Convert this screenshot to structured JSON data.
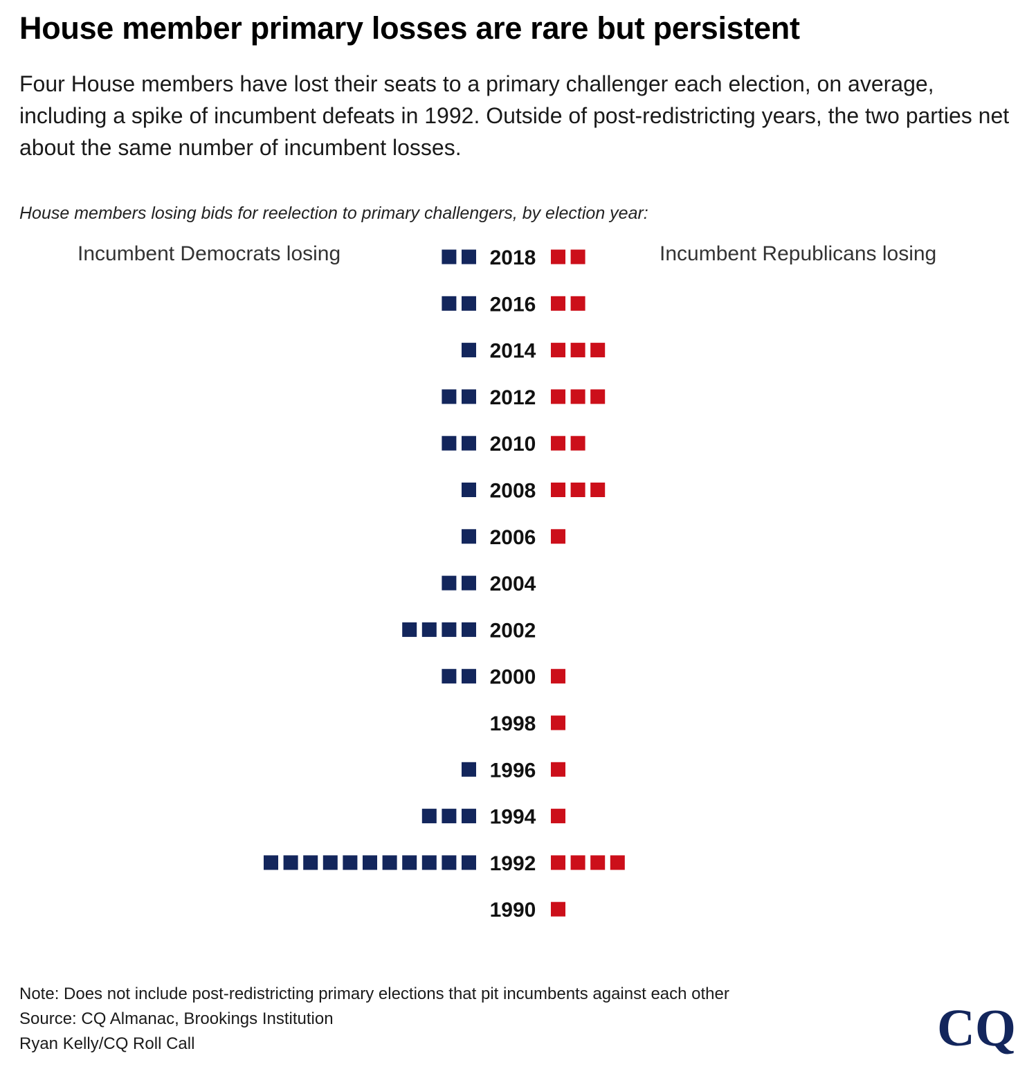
{
  "header": {
    "title": "House member primary losses are rare but persistent",
    "subtitle": "Four House members have lost their seats to a primary challenger each election, on average, including a spike of incumbent defeats in 1992. Outside of post-redistricting years, the two parties net about the same number of incumbent losses.",
    "chart_caption": "House members losing bids for reelection to primary challengers, by election year:"
  },
  "legend": {
    "left_label": "Incumbent Democrats losing",
    "right_label": "Incumbent Republicans losing"
  },
  "colors": {
    "democrat": "#13265c",
    "republican": "#cc0f1a",
    "logo": "#13265c"
  },
  "chart_data": {
    "type": "butterfly-unit",
    "title": "House members losing bids for reelection to primary challengers, by election year:",
    "series": [
      {
        "name": "Incumbent Democrats losing",
        "side": "left"
      },
      {
        "name": "Incumbent Republicans losing",
        "side": "right"
      }
    ],
    "rows": [
      {
        "year": "2018",
        "dem": 2,
        "rep": 2
      },
      {
        "year": "2016",
        "dem": 2,
        "rep": 2
      },
      {
        "year": "2014",
        "dem": 1,
        "rep": 3
      },
      {
        "year": "2012",
        "dem": 2,
        "rep": 3
      },
      {
        "year": "2010",
        "dem": 2,
        "rep": 2
      },
      {
        "year": "2008",
        "dem": 1,
        "rep": 3
      },
      {
        "year": "2006",
        "dem": 1,
        "rep": 1
      },
      {
        "year": "2004",
        "dem": 2,
        "rep": 0
      },
      {
        "year": "2002",
        "dem": 4,
        "rep": 0
      },
      {
        "year": "2000",
        "dem": 2,
        "rep": 1
      },
      {
        "year": "1998",
        "dem": 0,
        "rep": 1
      },
      {
        "year": "1996",
        "dem": 1,
        "rep": 1
      },
      {
        "year": "1994",
        "dem": 3,
        "rep": 1
      },
      {
        "year": "1992",
        "dem": 11,
        "rep": 4
      },
      {
        "year": "1990",
        "dem": 0,
        "rep": 1
      }
    ]
  },
  "footer": {
    "note": "Note: Does not include post-redistricting primary elections that pit incumbents against each other",
    "source": "Source: CQ Almanac, Brookings Institution",
    "credit": "Ryan Kelly/CQ Roll Call",
    "logo_text": "CQ"
  }
}
